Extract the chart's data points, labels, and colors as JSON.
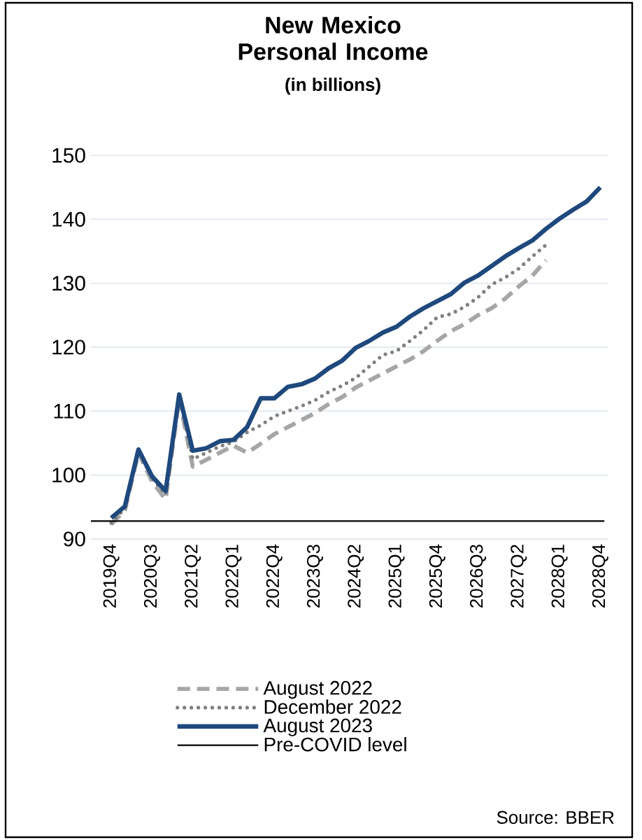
{
  "chart_data": {
    "type": "line",
    "title": "New Mexico Personal Income",
    "subtitle": "(in billions)",
    "categories": [
      "2019Q4",
      null,
      null,
      "2020Q3",
      null,
      null,
      "2021Q2",
      null,
      null,
      "2022Q1",
      null,
      null,
      "2022Q4",
      null,
      null,
      "2023Q3",
      null,
      null,
      "2024Q2",
      null,
      null,
      "2025Q1",
      null,
      null,
      "2025Q4",
      null,
      null,
      "2026Q3",
      null,
      null,
      "2027Q2",
      null,
      null,
      "2028Q1",
      null,
      null,
      "2028Q4"
    ],
    "series": [
      {
        "name": "August 2022",
        "color": "#a6a6a6",
        "line_style": "dashed",
        "values": [
          92.3,
          94.5,
          103.5,
          99.0,
          96.2,
          112.0,
          101.3,
          102.4,
          103.5,
          104.6,
          103.5,
          104.9,
          106.4,
          107.5,
          108.6,
          109.7,
          111.1,
          112.2,
          113.7,
          114.8,
          115.9,
          117.0,
          118.1,
          119.4,
          121.0,
          122.5,
          123.6,
          125.0,
          126.1,
          127.6,
          129.5,
          131.2,
          133.6,
          null,
          null,
          null,
          null
        ]
      },
      {
        "name": "December 2022",
        "color": "#808080",
        "line_style": "dotted",
        "values": [
          92.5,
          94.8,
          103.8,
          99.5,
          97.0,
          112.4,
          102.5,
          103.5,
          104.5,
          105.2,
          106.7,
          107.8,
          109.2,
          110.0,
          110.8,
          111.7,
          113.0,
          114.0,
          115.2,
          117.0,
          118.8,
          119.4,
          121.0,
          122.7,
          124.7,
          125.2,
          126.3,
          127.8,
          129.8,
          130.9,
          132.3,
          134.2,
          136.0,
          null,
          null,
          null,
          null
        ]
      },
      {
        "name": "August 2023",
        "color": "#1f497d",
        "line_style": "solid",
        "values": [
          93.3,
          95.1,
          104.0,
          99.8,
          97.5,
          112.6,
          103.8,
          104.2,
          105.3,
          105.5,
          107.5,
          112.0,
          112.0,
          113.8,
          114.2,
          115.1,
          116.7,
          117.9,
          119.9,
          121.0,
          122.3,
          123.2,
          124.8,
          126.1,
          127.2,
          128.3,
          130.1,
          131.2,
          132.7,
          134.2,
          135.5,
          136.7,
          138.5,
          140.1,
          141.5,
          142.8,
          145.0
        ]
      }
    ],
    "ylim": [
      90,
      150
    ],
    "yticks": [
      90,
      100,
      110,
      120,
      130,
      140,
      150
    ],
    "grid": "y",
    "legend": "bottom",
    "marker": "none",
    "ref_lines": [
      {
        "axis": "y",
        "value": 92.8,
        "label": "Pre-COVID level",
        "color": "#000000"
      }
    ],
    "annotations": [
      "Source: BBER"
    ]
  }
}
